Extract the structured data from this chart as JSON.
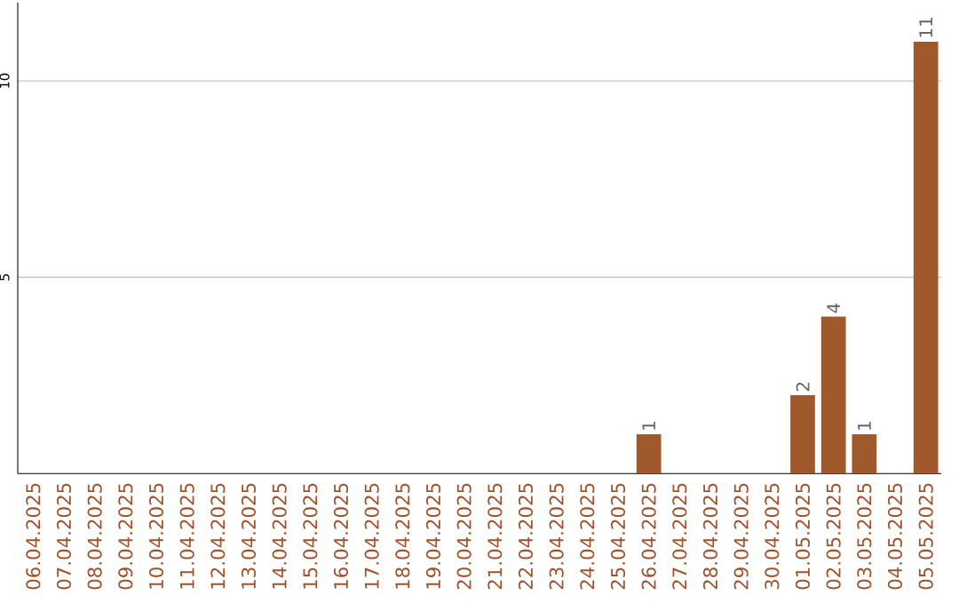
{
  "chart_data": {
    "type": "bar",
    "categories": [
      "06.04.2025",
      "07.04.2025",
      "08.04.2025",
      "09.04.2025",
      "10.04.2025",
      "11.04.2025",
      "12.04.2025",
      "13.04.2025",
      "14.04.2025",
      "15.04.2025",
      "16.04.2025",
      "17.04.2025",
      "18.04.2025",
      "19.04.2025",
      "20.04.2025",
      "21.04.2025",
      "22.04.2025",
      "23.04.2025",
      "24.04.2025",
      "25.04.2025",
      "26.04.2025",
      "27.04.2025",
      "28.04.2025",
      "29.04.2025",
      "30.04.2025",
      "01.05.2025",
      "02.05.2025",
      "03.05.2025",
      "04.05.2025",
      "05.05.2025"
    ],
    "values": [
      0,
      0,
      0,
      0,
      0,
      0,
      0,
      0,
      0,
      0,
      0,
      0,
      0,
      0,
      0,
      0,
      0,
      0,
      0,
      0,
      1,
      0,
      0,
      0,
      0,
      2,
      4,
      1,
      0,
      11
    ],
    "value_labels": [
      null,
      null,
      null,
      null,
      null,
      null,
      null,
      null,
      null,
      null,
      null,
      null,
      null,
      null,
      null,
      null,
      null,
      null,
      null,
      null,
      "1",
      null,
      null,
      null,
      null,
      "2",
      "4",
      "1",
      null,
      "11"
    ],
    "color": "#a0592b",
    "ylim": [
      0,
      12
    ],
    "yticks": [
      5,
      10
    ],
    "grid": "y"
  }
}
